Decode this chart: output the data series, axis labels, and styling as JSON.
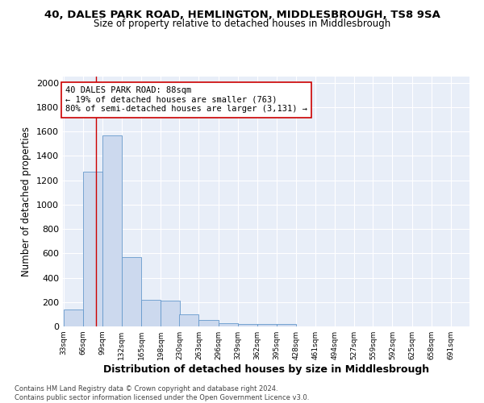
{
  "title1": "40, DALES PARK ROAD, HEMLINGTON, MIDDLESBROUGH, TS8 9SA",
  "title2": "Size of property relative to detached houses in Middlesbrough",
  "xlabel": "Distribution of detached houses by size in Middlesbrough",
  "ylabel": "Number of detached properties",
  "footnote1": "Contains HM Land Registry data © Crown copyright and database right 2024.",
  "footnote2": "Contains public sector information licensed under the Open Government Licence v3.0.",
  "bar_edges": [
    33,
    66,
    99,
    132,
    165,
    198,
    230,
    263,
    296,
    329,
    362,
    395,
    428,
    461,
    494,
    527,
    559,
    592,
    625,
    658,
    691
  ],
  "bar_heights": [
    137,
    1270,
    1570,
    570,
    215,
    210,
    98,
    50,
    28,
    22,
    22,
    22,
    0,
    0,
    0,
    0,
    0,
    0,
    0,
    0
  ],
  "bar_color": "#ccd9ee",
  "bar_edgecolor": "#6699cc",
  "reference_line_x": 88,
  "reference_line_color": "#cc0000",
  "annotation_text": "40 DALES PARK ROAD: 88sqm\n← 19% of detached houses are smaller (763)\n80% of semi-detached houses are larger (3,131) →",
  "annotation_box_color": "#ffffff",
  "annotation_box_edgecolor": "#cc0000",
  "ylim": [
    0,
    2050
  ],
  "yticks": [
    0,
    200,
    400,
    600,
    800,
    1000,
    1200,
    1400,
    1600,
    1800,
    2000
  ],
  "tick_labels": [
    "33sqm",
    "66sqm",
    "99sqm",
    "132sqm",
    "165sqm",
    "198sqm",
    "230sqm",
    "263sqm",
    "296sqm",
    "329sqm",
    "362sqm",
    "395sqm",
    "428sqm",
    "461sqm",
    "494sqm",
    "527sqm",
    "559sqm",
    "592sqm",
    "625sqm",
    "658sqm",
    "691sqm"
  ],
  "background_color": "#e8eef8",
  "grid_color": "#ffffff"
}
